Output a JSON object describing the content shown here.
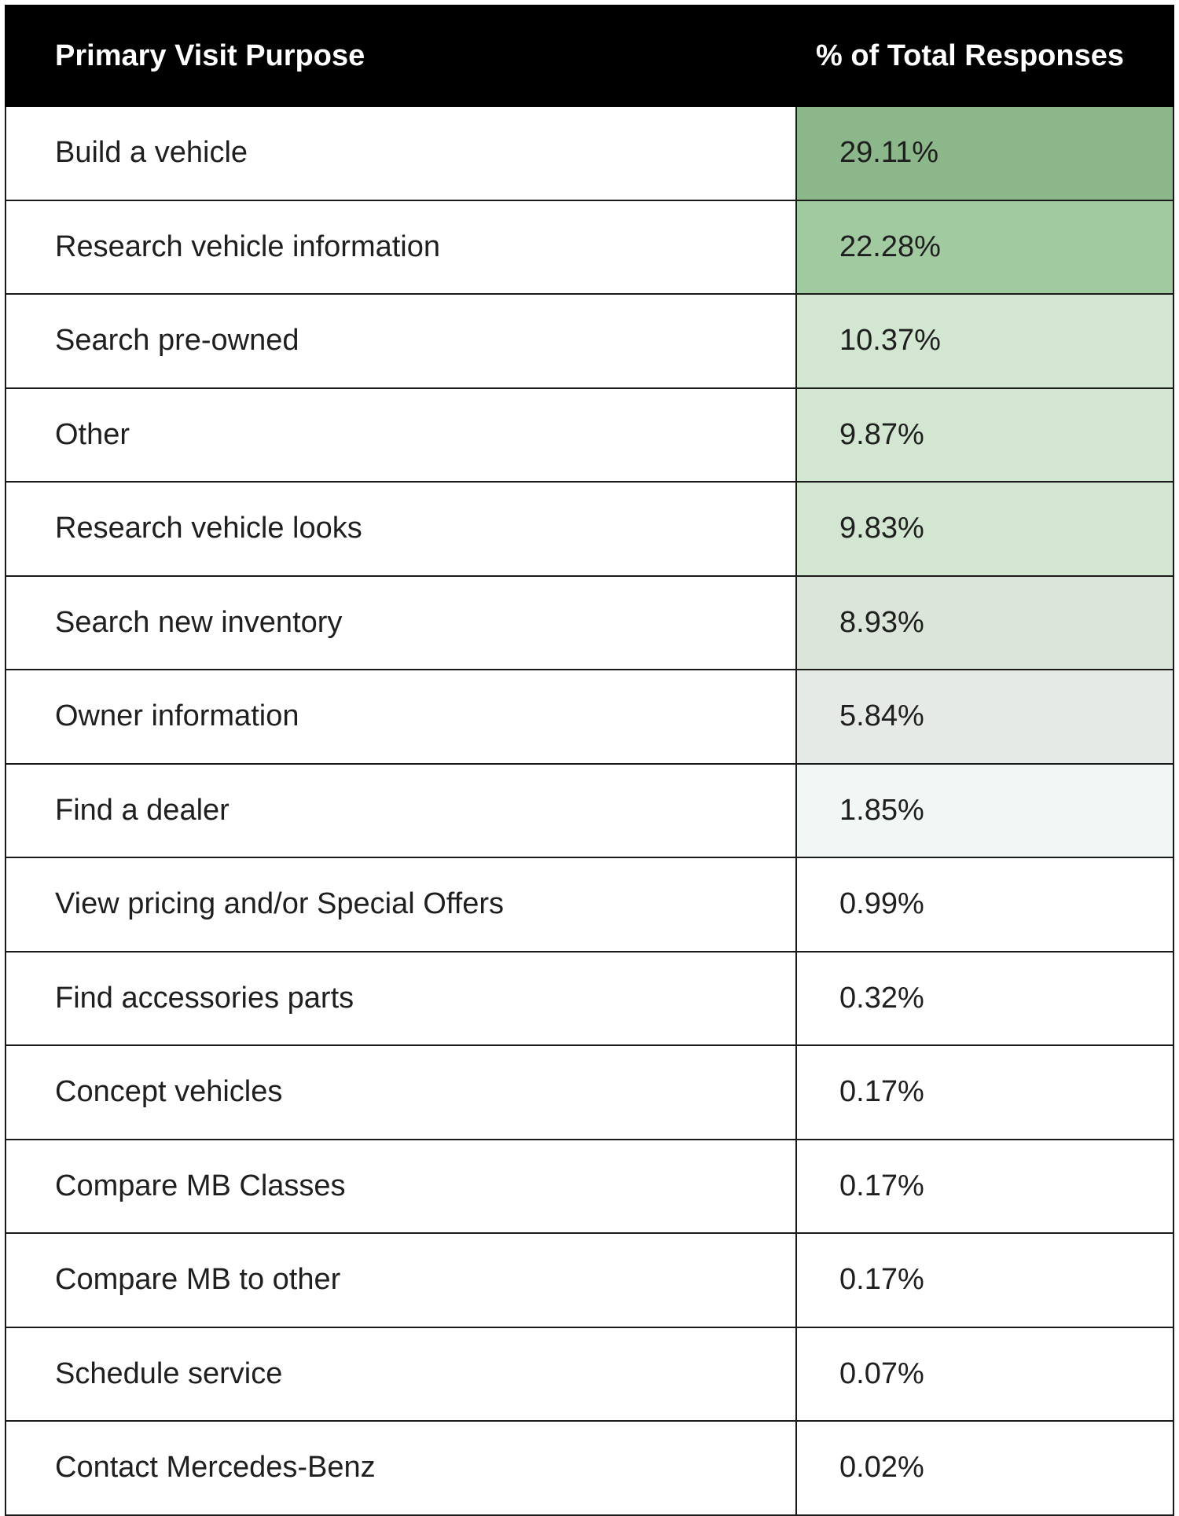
{
  "chart_data": {
    "type": "table",
    "columns": [
      "Primary Visit Purpose",
      "% of Total Responses"
    ],
    "rows": [
      {
        "purpose": "Build a vehicle",
        "value": 29.11,
        "label": "29.11%",
        "color": "#8cb78a"
      },
      {
        "purpose": "Research vehicle information",
        "value": 22.28,
        "label": "22.28%",
        "color": "#a1caa1"
      },
      {
        "purpose": "Search pre-owned",
        "value": 10.37,
        "label": "10.37%",
        "color": "#d2e6d1"
      },
      {
        "purpose": "Other",
        "value": 9.87,
        "label": "9.87%",
        "color": "#d2e6d1"
      },
      {
        "purpose": "Research vehicle looks",
        "value": 9.83,
        "label": "9.83%",
        "color": "#d2e6d1"
      },
      {
        "purpose": "Search new inventory",
        "value": 8.93,
        "label": "8.93%",
        "color": "#dbe5da"
      },
      {
        "purpose": "Owner information",
        "value": 5.84,
        "label": "5.84%",
        "color": "#e6eae6"
      },
      {
        "purpose": "Find a dealer",
        "value": 1.85,
        "label": "1.85%",
        "color": "#f1f7f5"
      },
      {
        "purpose": "View pricing and/or Special Offers",
        "value": 0.99,
        "label": "0.99%",
        "color": "#ffffff"
      },
      {
        "purpose": "Find accessories parts",
        "value": 0.32,
        "label": "0.32%",
        "color": "#ffffff"
      },
      {
        "purpose": "Concept vehicles",
        "value": 0.17,
        "label": "0.17%",
        "color": "#ffffff"
      },
      {
        "purpose": "Compare MB Classes",
        "value": 0.17,
        "label": "0.17%",
        "color": "#ffffff"
      },
      {
        "purpose": "Compare MB to other",
        "value": 0.17,
        "label": "0.17%",
        "color": "#ffffff"
      },
      {
        "purpose": "Schedule service",
        "value": 0.07,
        "label": "0.07%",
        "color": "#ffffff"
      },
      {
        "purpose": "Contact Mercedes-Benz",
        "value": 0.02,
        "label": "0.02%",
        "color": "#ffffff"
      }
    ]
  }
}
